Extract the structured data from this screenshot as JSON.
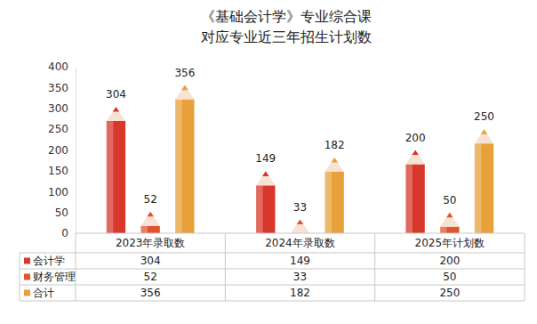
{
  "chart_data": {
    "type": "bar",
    "title": [
      "《基础会计学》专业综合课",
      "对应专业近三年招生计划数"
    ],
    "categories": [
      "2023年录取数",
      "2024年录取数",
      "2025年计划数"
    ],
    "series": [
      {
        "name": "会计学",
        "color": "#d8372b",
        "values": [
          304,
          149,
          200
        ]
      },
      {
        "name": "财务管理",
        "color": "#e0532f",
        "values": [
          52,
          33,
          50
        ]
      },
      {
        "name": "合计",
        "color": "#e8a03a",
        "values": [
          356,
          182,
          250
        ]
      }
    ],
    "ylim": [
      0,
      400
    ],
    "yticks": [
      0,
      50,
      100,
      150,
      200,
      250,
      300,
      350,
      400
    ],
    "grid": false,
    "data_labels": true
  }
}
